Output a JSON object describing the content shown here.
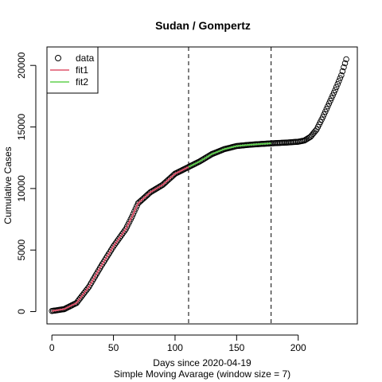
{
  "chart_data": {
    "type": "scatter",
    "title": "Sudan / Gompertz",
    "xlabel": "Days since 2020-04-19",
    "xlabel_sub": "Simple Moving Avarage (window size = 7)",
    "ylabel": "Cumulative Cases",
    "xlim": [
      -4,
      248
    ],
    "ylim": [
      -1000,
      21500
    ],
    "x_ticks": [
      0,
      50,
      100,
      150,
      200
    ],
    "y_ticks": [
      0,
      5000,
      10000,
      15000,
      20000
    ],
    "vlines": [
      111,
      178
    ],
    "legend": {
      "position": "top-left",
      "entries": [
        {
          "label": "data",
          "kind": "circle",
          "color": "#000000"
        },
        {
          "label": "fit1",
          "kind": "line",
          "color": "#DF536B"
        },
        {
          "label": "fit2",
          "kind": "line",
          "color": "#61D04F"
        }
      ]
    },
    "data_points": [
      [
        0,
        50
      ],
      [
        10,
        200
      ],
      [
        20,
        700
      ],
      [
        30,
        2000
      ],
      [
        40,
        3700
      ],
      [
        50,
        5300
      ],
      [
        60,
        6700
      ],
      [
        65,
        7700
      ],
      [
        70,
        8800
      ],
      [
        80,
        9700
      ],
      [
        90,
        10300
      ],
      [
        100,
        11200
      ],
      [
        110,
        11700
      ],
      [
        120,
        12200
      ],
      [
        130,
        12800
      ],
      [
        140,
        13200
      ],
      [
        150,
        13450
      ],
      [
        160,
        13550
      ],
      [
        170,
        13620
      ],
      [
        180,
        13680
      ],
      [
        190,
        13730
      ],
      [
        200,
        13800
      ],
      [
        205,
        13900
      ],
      [
        210,
        14200
      ],
      [
        215,
        14800
      ],
      [
        220,
        15800
      ],
      [
        225,
        16900
      ],
      [
        230,
        18000
      ],
      [
        235,
        19200
      ],
      [
        239,
        20500
      ]
    ],
    "fit1": {
      "name": "fit1",
      "color": "#DF536B",
      "x_start": 0,
      "x_end": 111,
      "points": [
        [
          0,
          50
        ],
        [
          10,
          200
        ],
        [
          20,
          700
        ],
        [
          30,
          2000
        ],
        [
          40,
          3700
        ],
        [
          50,
          5300
        ],
        [
          60,
          6700
        ],
        [
          65,
          7700
        ],
        [
          70,
          8800
        ],
        [
          80,
          9700
        ],
        [
          90,
          10300
        ],
        [
          100,
          11200
        ],
        [
          111,
          11750
        ]
      ]
    },
    "fit2": {
      "name": "fit2",
      "color": "#61D04F",
      "x_start": 111,
      "x_end": 178,
      "points": [
        [
          111,
          11750
        ],
        [
          120,
          12200
        ],
        [
          130,
          12800
        ],
        [
          140,
          13200
        ],
        [
          150,
          13450
        ],
        [
          160,
          13550
        ],
        [
          170,
          13620
        ],
        [
          178,
          13670
        ]
      ]
    }
  }
}
